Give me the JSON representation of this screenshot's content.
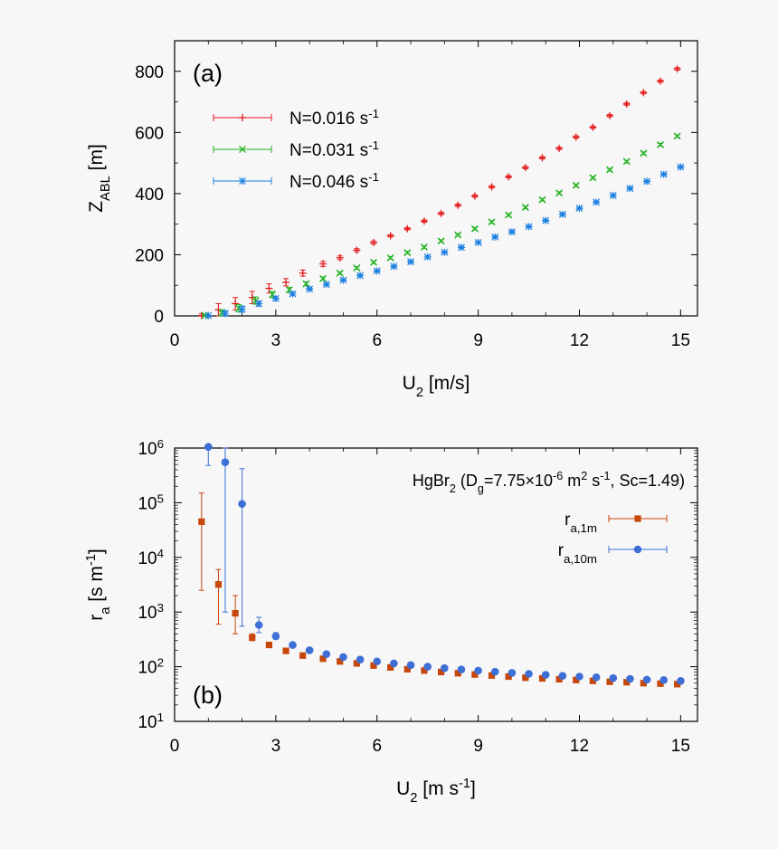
{
  "chart_data": [
    {
      "type": "scatter",
      "panel_label": "(a)",
      "xlabel": {
        "main": "U",
        "sub": "2",
        "unit": " [m/s]"
      },
      "ylabel": {
        "main": "Z",
        "sub": "ABL",
        "unit": " [m]"
      },
      "xlim": [
        0,
        15.5
      ],
      "ylim": [
        0,
        900
      ],
      "y_scale": "linear",
      "x_ticks": [
        "0",
        "3",
        "6",
        "9",
        "12",
        "15"
      ],
      "y_ticks": [
        "0",
        "200",
        "400",
        "600",
        "800"
      ],
      "legend_position": "top-left",
      "grid": false,
      "series": [
        {
          "name": {
            "main": "N=0.016 s",
            "sup": "-1"
          },
          "color": "#e41a1c",
          "marker": "plus",
          "x": [
            0.8,
            1.3,
            1.8,
            2.3,
            2.8,
            3.3,
            3.8,
            4.4,
            4.9,
            5.4,
            5.9,
            6.4,
            6.9,
            7.4,
            7.9,
            8.4,
            8.9,
            9.4,
            9.9,
            10.4,
            10.9,
            11.4,
            11.9,
            12.4,
            12.9,
            13.4,
            13.9,
            14.4,
            14.9
          ],
          "y": [
            1,
            20,
            40,
            60,
            90,
            110,
            140,
            170,
            190,
            215,
            240,
            262,
            285,
            310,
            335,
            362,
            392,
            422,
            455,
            485,
            517,
            548,
            585,
            617,
            655,
            693,
            730,
            768,
            808
          ],
          "err": [
            6,
            20,
            20,
            20,
            15,
            12,
            10,
            8,
            6,
            5,
            5,
            4,
            4,
            4,
            4,
            4,
            4,
            4,
            4,
            4,
            4,
            4,
            4,
            4,
            4,
            4,
            4,
            4,
            4
          ]
        },
        {
          "name": {
            "main": "N=0.031 s",
            "sup": "-1"
          },
          "color": "#22b322",
          "marker": "cross",
          "x": [
            0.9,
            1.4,
            1.9,
            2.4,
            2.9,
            3.4,
            3.9,
            4.4,
            4.9,
            5.4,
            5.9,
            6.4,
            6.9,
            7.4,
            7.9,
            8.4,
            8.9,
            9.4,
            9.9,
            10.4,
            10.9,
            11.4,
            11.9,
            12.4,
            12.9,
            13.4,
            13.9,
            14.4,
            14.9
          ],
          "y": [
            1,
            10,
            25,
            50,
            70,
            85,
            105,
            122,
            140,
            157,
            175,
            190,
            207,
            225,
            245,
            265,
            285,
            307,
            330,
            355,
            380,
            402,
            427,
            452,
            478,
            505,
            532,
            560,
            588
          ],
          "err": [
            4,
            10,
            12,
            12,
            10,
            8,
            6,
            5,
            4,
            4,
            4,
            4,
            4,
            4,
            4,
            4,
            4,
            4,
            4,
            4,
            4,
            4,
            4,
            4,
            4,
            4,
            4,
            4,
            4
          ]
        },
        {
          "name": {
            "main": "N=0.046 s",
            "sup": "-1"
          },
          "color": "#1a7fe0",
          "marker": "star",
          "x": [
            1.0,
            1.5,
            2.0,
            2.5,
            3.0,
            3.5,
            4.0,
            4.5,
            5.0,
            5.5,
            6.0,
            6.5,
            7.0,
            7.5,
            8.0,
            8.5,
            9.0,
            9.5,
            10.0,
            10.5,
            11.0,
            11.5,
            12.0,
            12.5,
            13.0,
            13.5,
            14.0,
            14.5,
            15.0
          ],
          "y": [
            1,
            8,
            22,
            40,
            57,
            72,
            88,
            103,
            117,
            132,
            147,
            162,
            177,
            193,
            208,
            224,
            240,
            258,
            275,
            292,
            312,
            332,
            352,
            372,
            394,
            417,
            440,
            463,
            487
          ],
          "err": [
            3,
            8,
            10,
            8,
            6,
            5,
            4,
            4,
            4,
            4,
            4,
            4,
            4,
            4,
            4,
            4,
            4,
            4,
            4,
            4,
            4,
            4,
            4,
            4,
            4,
            4,
            4,
            4,
            4
          ]
        }
      ]
    },
    {
      "type": "scatter",
      "panel_label": "(b)",
      "xlabel": {
        "main": "U",
        "sub": "2",
        "unit": " [m s",
        "unit_sup": "-1",
        "unit_end": "]"
      },
      "ylabel": {
        "main": "r",
        "sub": "a",
        "unit": " [s m",
        "unit_sup": "-1",
        "unit_end": "]"
      },
      "xlim": [
        0,
        15.5
      ],
      "y_scale": "log",
      "ylim": [
        10,
        1000000
      ],
      "x_ticks": [
        "0",
        "3",
        "6",
        "9",
        "12",
        "15"
      ],
      "y_ticks": [
        {
          "base": "10",
          "exp": "1"
        },
        {
          "base": "10",
          "exp": "2"
        },
        {
          "base": "10",
          "exp": "3"
        },
        {
          "base": "10",
          "exp": "4"
        },
        {
          "base": "10",
          "exp": "5"
        },
        {
          "base": "10",
          "exp": "6"
        }
      ],
      "legend_position": "top-right",
      "grid": false,
      "annotation": {
        "t1": "HgBr",
        "s1": "2",
        "t2": " (D",
        "s2": "g",
        "t3": "=7.75×10",
        "p3": "-6",
        "t4": " m",
        "p4": "2",
        "t5": " s",
        "p5": "-1",
        "t6": ", Sc=1.49)"
      },
      "series": [
        {
          "name": {
            "main": "r",
            "sub": "a,1m"
          },
          "color": "#c7470a",
          "marker": "square",
          "x": [
            0.8,
            1.3,
            1.8,
            2.3,
            2.8,
            3.3,
            3.8,
            4.4,
            4.9,
            5.4,
            5.9,
            6.4,
            6.9,
            7.4,
            7.9,
            8.4,
            8.9,
            9.4,
            9.9,
            10.4,
            10.9,
            11.4,
            11.9,
            12.4,
            12.9,
            13.4,
            13.9,
            14.4,
            14.9
          ],
          "y": [
            45000,
            3200,
            950,
            340,
            250,
            195,
            160,
            140,
            125,
            115,
            105,
            97,
            90,
            85,
            80,
            76,
            72,
            69,
            66,
            63,
            61,
            59,
            57,
            55,
            53,
            52,
            50,
            49,
            48
          ],
          "err_low": [
            2500,
            600,
            400,
            300,
            240,
            190,
            155,
            137,
            123,
            113,
            103,
            95,
            88,
            83,
            78,
            74,
            70,
            67,
            64,
            61,
            59,
            57,
            55,
            53,
            51,
            50,
            48,
            47,
            46
          ],
          "err_high": [
            150000,
            6000,
            2000,
            400,
            260,
            200,
            165,
            143,
            127,
            117,
            107,
            99,
            92,
            87,
            82,
            78,
            74,
            71,
            68,
            65,
            63,
            61,
            59,
            57,
            55,
            54,
            52,
            51,
            50
          ]
        },
        {
          "name": {
            "main": "r",
            "sub": "a,10m"
          },
          "color": "#3e6fd6",
          "marker": "circle",
          "x": [
            1.0,
            1.5,
            2.0,
            2.5,
            3.0,
            3.5,
            4.0,
            4.5,
            5.0,
            5.5,
            6.0,
            6.5,
            7.0,
            7.5,
            8.0,
            8.5,
            9.0,
            9.5,
            10.0,
            10.5,
            11.0,
            11.5,
            12.0,
            12.5,
            13.0,
            13.5,
            14.0,
            14.5,
            15.0
          ],
          "y": [
            1050000,
            550000,
            95000,
            580,
            360,
            250,
            200,
            170,
            150,
            135,
            125,
            115,
            107,
            100,
            94,
            89,
            85,
            81,
            77,
            74,
            71,
            68,
            66,
            64,
            62,
            60,
            58,
            57,
            55
          ],
          "err_low": [
            480000,
            1000,
            550,
            420,
            320,
            240,
            195,
            166,
            147,
            132,
            122,
            112,
            104,
            97,
            91,
            86,
            82,
            78,
            74,
            71,
            68,
            65,
            63,
            61,
            59,
            57,
            55,
            54,
            52
          ],
          "err_high": [
            1250000,
            1000000,
            420000,
            800,
            420,
            265,
            210,
            176,
            154,
            139,
            128,
            118,
            110,
            103,
            97,
            92,
            88,
            84,
            80,
            77,
            74,
            71,
            69,
            67,
            65,
            63,
            61,
            60,
            58
          ]
        }
      ]
    }
  ]
}
